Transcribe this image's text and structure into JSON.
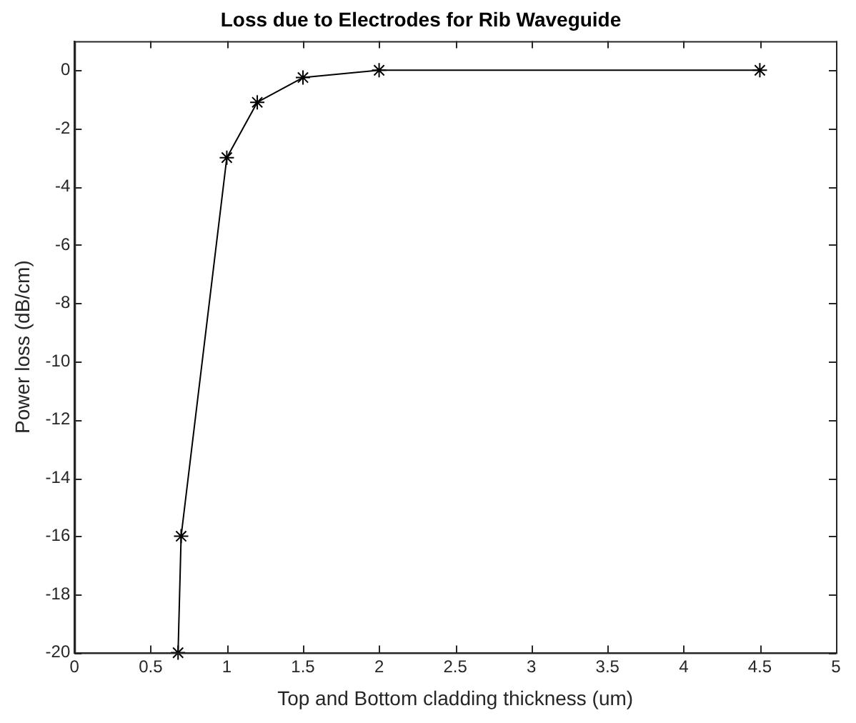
{
  "chart_data": {
    "type": "line",
    "title": "Loss due to Electrodes for Rib Waveguide",
    "xlabel": "Top and Bottom cladding thickness (um)",
    "ylabel": "Power loss (dB/cm)",
    "x": [
      0.68,
      0.7,
      1,
      1.2,
      1.5,
      2,
      4.5
    ],
    "series": [
      {
        "color": "#000000",
        "values": [
          -20,
          -16,
          -3,
          -1.1,
          -0.25,
          0,
          0
        ]
      }
    ],
    "xlim": [
      0,
      5
    ],
    "xticks": [
      0,
      0.5,
      1,
      1.5,
      2,
      2.5,
      3,
      3.5,
      4,
      4.5,
      5
    ],
    "ylim": [
      -20,
      1
    ],
    "yticks": [
      0,
      -2,
      -4,
      -6,
      -8,
      -10,
      -12,
      -14,
      -16,
      -18,
      -20
    ],
    "grid": false,
    "legend": false,
    "marker": "cross",
    "line_style": "solid"
  }
}
